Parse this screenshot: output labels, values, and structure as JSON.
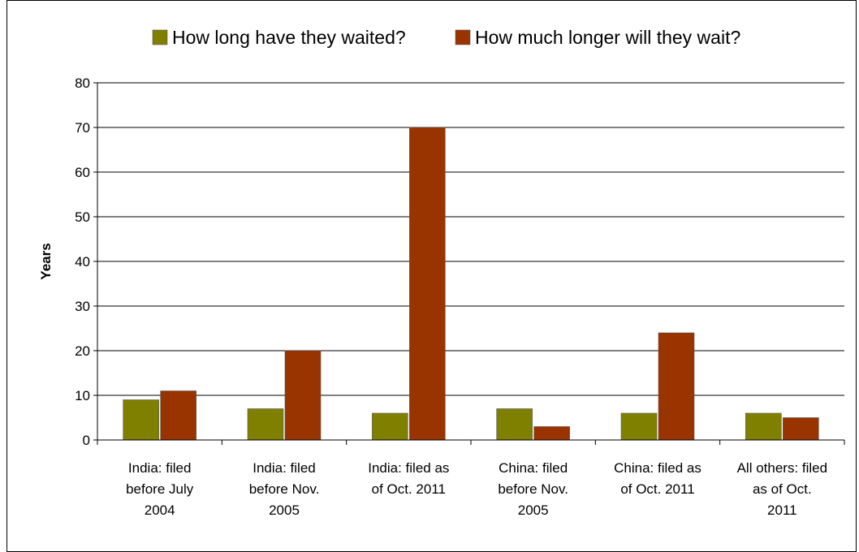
{
  "chart_data": {
    "type": "bar",
    "categories": [
      [
        "India: filed",
        "before July",
        "2004"
      ],
      [
        "India: filed",
        "before Nov.",
        "2005"
      ],
      [
        "India: filed as",
        "of Oct. 2011"
      ],
      [
        "China: filed",
        "before Nov.",
        "2005"
      ],
      [
        "China: filed as",
        "of Oct. 2011"
      ],
      [
        "All others: filed",
        "as of Oct.",
        "2011"
      ]
    ],
    "series": [
      {
        "name": "How long have they waited?",
        "color": "#808000",
        "values": [
          9,
          7,
          6,
          7,
          6,
          6
        ]
      },
      {
        "name": "How much longer will they wait?",
        "color": "#993300",
        "values": [
          11,
          20,
          70,
          3,
          24,
          5
        ]
      }
    ],
    "ylabel": "Years",
    "xlabel": "",
    "ylim": [
      0,
      80
    ],
    "yticks": [
      0,
      10,
      20,
      30,
      40,
      50,
      60,
      70,
      80
    ],
    "grid": true,
    "legend_position": "top"
  }
}
